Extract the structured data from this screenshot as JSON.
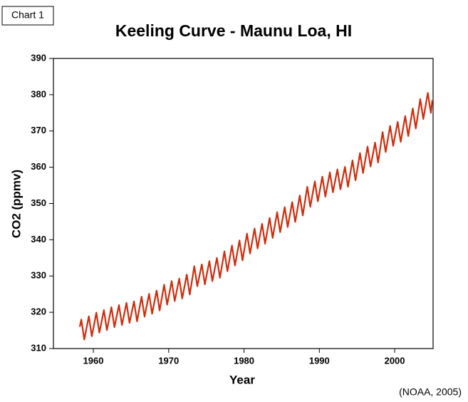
{
  "label": "Chart 1",
  "source": "(NOAA, 2005)",
  "chart_data": {
    "type": "line",
    "title": "Keeling Curve - Maunu Loa, HI",
    "x_label": "Year",
    "y_label": "CO2 (ppmv)",
    "xlim": [
      1954.7,
      2005.1
    ],
    "xticks": [
      1960,
      1970,
      1980,
      1990,
      2000
    ],
    "ylim": [
      310,
      390
    ],
    "yticks": [
      310,
      320,
      330,
      340,
      350,
      360,
      370,
      380,
      390
    ],
    "x": [
      1958.2,
      1958.4,
      1958.8,
      1959.4,
      1959.8,
      1960.4,
      1960.8,
      1961.4,
      1961.8,
      1962.4,
      1962.8,
      1963.4,
      1963.8,
      1964.4,
      1964.8,
      1965.4,
      1965.8,
      1966.4,
      1966.8,
      1967.4,
      1967.8,
      1968.4,
      1968.8,
      1969.4,
      1969.8,
      1970.4,
      1970.8,
      1971.4,
      1971.8,
      1972.4,
      1972.8,
      1973.4,
      1973.8,
      1974.4,
      1974.8,
      1975.4,
      1975.8,
      1976.4,
      1976.8,
      1977.4,
      1977.8,
      1978.4,
      1978.8,
      1979.4,
      1979.8,
      1980.4,
      1980.8,
      1981.4,
      1981.8,
      1982.4,
      1982.8,
      1983.4,
      1983.8,
      1984.4,
      1984.8,
      1985.4,
      1985.8,
      1986.4,
      1986.8,
      1987.4,
      1987.8,
      1988.4,
      1988.8,
      1989.4,
      1989.8,
      1990.4,
      1990.8,
      1991.4,
      1991.8,
      1992.4,
      1992.8,
      1993.4,
      1993.8,
      1994.4,
      1994.8,
      1995.4,
      1995.8,
      1996.4,
      1996.8,
      1997.4,
      1997.8,
      1998.4,
      1998.8,
      1999.4,
      1999.8,
      2000.4,
      2000.8,
      2001.4,
      2001.8,
      2002.4,
      2002.8,
      2003.4,
      2003.8,
      2004.4,
      2004.8,
      2005.0
    ],
    "series": [
      {
        "color": "#d02c0c",
        "values": [
          316.0,
          318.0,
          312.5,
          318.9,
          313.4,
          319.9,
          314.4,
          320.6,
          315.1,
          321.4,
          315.9,
          322.0,
          316.5,
          322.6,
          317.1,
          323.0,
          317.5,
          324.3,
          318.8,
          325.1,
          319.6,
          326.0,
          320.5,
          327.6,
          322.1,
          328.6,
          323.1,
          329.3,
          323.8,
          330.4,
          324.9,
          332.7,
          327.2,
          333.2,
          327.7,
          334.1,
          328.6,
          335.0,
          329.5,
          336.8,
          331.3,
          338.4,
          332.9,
          339.8,
          334.3,
          341.7,
          336.2,
          343.1,
          337.6,
          344.4,
          338.9,
          346.0,
          340.5,
          347.6,
          342.1,
          349.0,
          343.5,
          350.4,
          344.9,
          352.2,
          346.7,
          354.6,
          349.1,
          356.1,
          350.6,
          357.4,
          351.9,
          358.6,
          353.1,
          359.4,
          353.9,
          360.1,
          354.6,
          361.9,
          356.4,
          363.9,
          358.4,
          365.7,
          360.2,
          366.8,
          361.3,
          369.7,
          364.2,
          371.4,
          365.9,
          372.5,
          367.0,
          374.1,
          368.6,
          376.2,
          370.7,
          378.8,
          373.3,
          380.5,
          375.0,
          378.5
        ]
      }
    ]
  }
}
